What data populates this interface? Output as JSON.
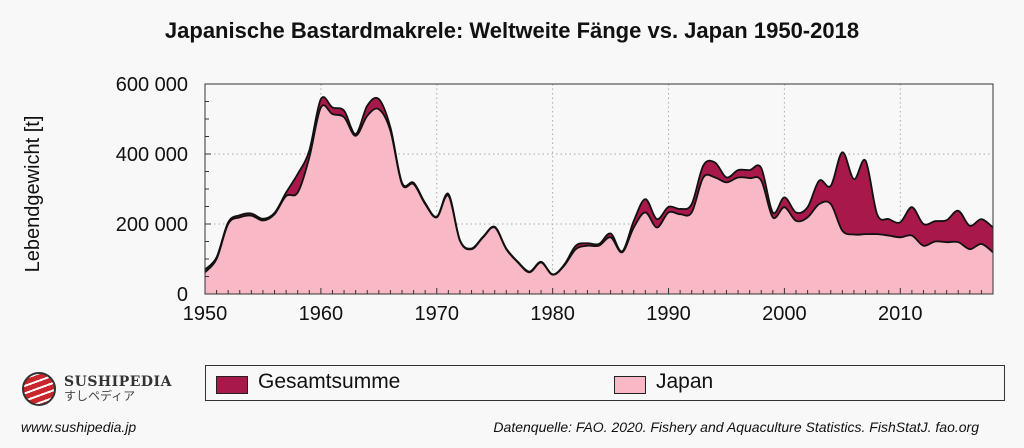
{
  "title": "Japanische Bastardmakrele: Weltweite Fänge vs. Japan 1950-2018",
  "logo": {
    "name": "SUSHIPEDIA",
    "sub": "すしペディア"
  },
  "url": "www.sushipedia.jp",
  "source": "Datenquelle: FAO. 2020. Fishery and Aquaculture Statistics. FishStatJ. fao.org",
  "chart_data": {
    "type": "area",
    "title": "Japanische Bastardmakrele: Weltweite Fänge vs. Japan 1950-2018",
    "xlabel": "",
    "ylabel": "Lebendgewicht [t]",
    "xlim": [
      1950,
      2018
    ],
    "ylim": [
      0,
      600000
    ],
    "xticks": [
      {
        "v": 1950,
        "label": "1950"
      },
      {
        "v": 1960,
        "label": "1960"
      },
      {
        "v": 1970,
        "label": "1970"
      },
      {
        "v": 1980,
        "label": "1980"
      },
      {
        "v": 1990,
        "label": "1990"
      },
      {
        "v": 2000,
        "label": "2000"
      },
      {
        "v": 2010,
        "label": "2010"
      }
    ],
    "yticks": [
      {
        "v": 0,
        "label": "0"
      },
      {
        "v": 200000,
        "label": "200 000"
      },
      {
        "v": 400000,
        "label": "400 000"
      },
      {
        "v": 600000,
        "label": "600 000"
      }
    ],
    "grid": true,
    "legend": "bottom",
    "x": [
      1950,
      1951,
      1952,
      1953,
      1954,
      1955,
      1956,
      1957,
      1958,
      1959,
      1960,
      1961,
      1962,
      1963,
      1964,
      1965,
      1966,
      1967,
      1968,
      1969,
      1970,
      1971,
      1972,
      1973,
      1974,
      1975,
      1976,
      1977,
      1978,
      1979,
      1980,
      1981,
      1982,
      1983,
      1984,
      1985,
      1986,
      1987,
      1988,
      1989,
      1990,
      1991,
      1992,
      1993,
      1994,
      1995,
      1996,
      1997,
      1998,
      1999,
      2000,
      2001,
      2002,
      2003,
      2004,
      2005,
      2006,
      2007,
      2008,
      2009,
      2010,
      2011,
      2012,
      2013,
      2014,
      2015,
      2016,
      2017,
      2018
    ],
    "series": [
      {
        "name": "Gesamtsumme",
        "color": "#a8184a",
        "values": [
          70000,
          105000,
          205000,
          225000,
          230000,
          215000,
          232000,
          290000,
          343000,
          410000,
          557000,
          533000,
          524000,
          457000,
          538000,
          557000,
          476000,
          318000,
          318000,
          260000,
          221000,
          286000,
          154000,
          130000,
          164000,
          192000,
          130000,
          92000,
          64000,
          92000,
          56000,
          84000,
          138000,
          145000,
          143000,
          173000,
          122000,
          209000,
          271000,
          214000,
          249000,
          243000,
          257000,
          367000,
          376000,
          333000,
          354000,
          354000,
          360000,
          233000,
          276000,
          233000,
          248000,
          324000,
          309000,
          405000,
          328000,
          381000,
          228000,
          214000,
          205000,
          248000,
          200000,
          208000,
          211000,
          238000,
          195000,
          214000,
          190000
        ]
      },
      {
        "name": "Japan",
        "color": "#f9b8c6",
        "values": [
          62000,
          100000,
          200000,
          219000,
          224000,
          210000,
          228000,
          280000,
          290000,
          390000,
          533000,
          514000,
          505000,
          452000,
          509000,
          528000,
          466000,
          314000,
          314000,
          257000,
          219000,
          281000,
          152000,
          128000,
          162000,
          190000,
          128000,
          90000,
          62000,
          90000,
          55000,
          81000,
          128000,
          138000,
          138000,
          162000,
          119000,
          190000,
          233000,
          190000,
          233000,
          228000,
          233000,
          333000,
          333000,
          319000,
          333000,
          331000,
          324000,
          219000,
          248000,
          209000,
          219000,
          257000,
          257000,
          181000,
          170000,
          171000,
          171000,
          167000,
          162000,
          167000,
          138000,
          150000,
          148000,
          148000,
          128000,
          143000,
          119000
        ]
      }
    ]
  }
}
